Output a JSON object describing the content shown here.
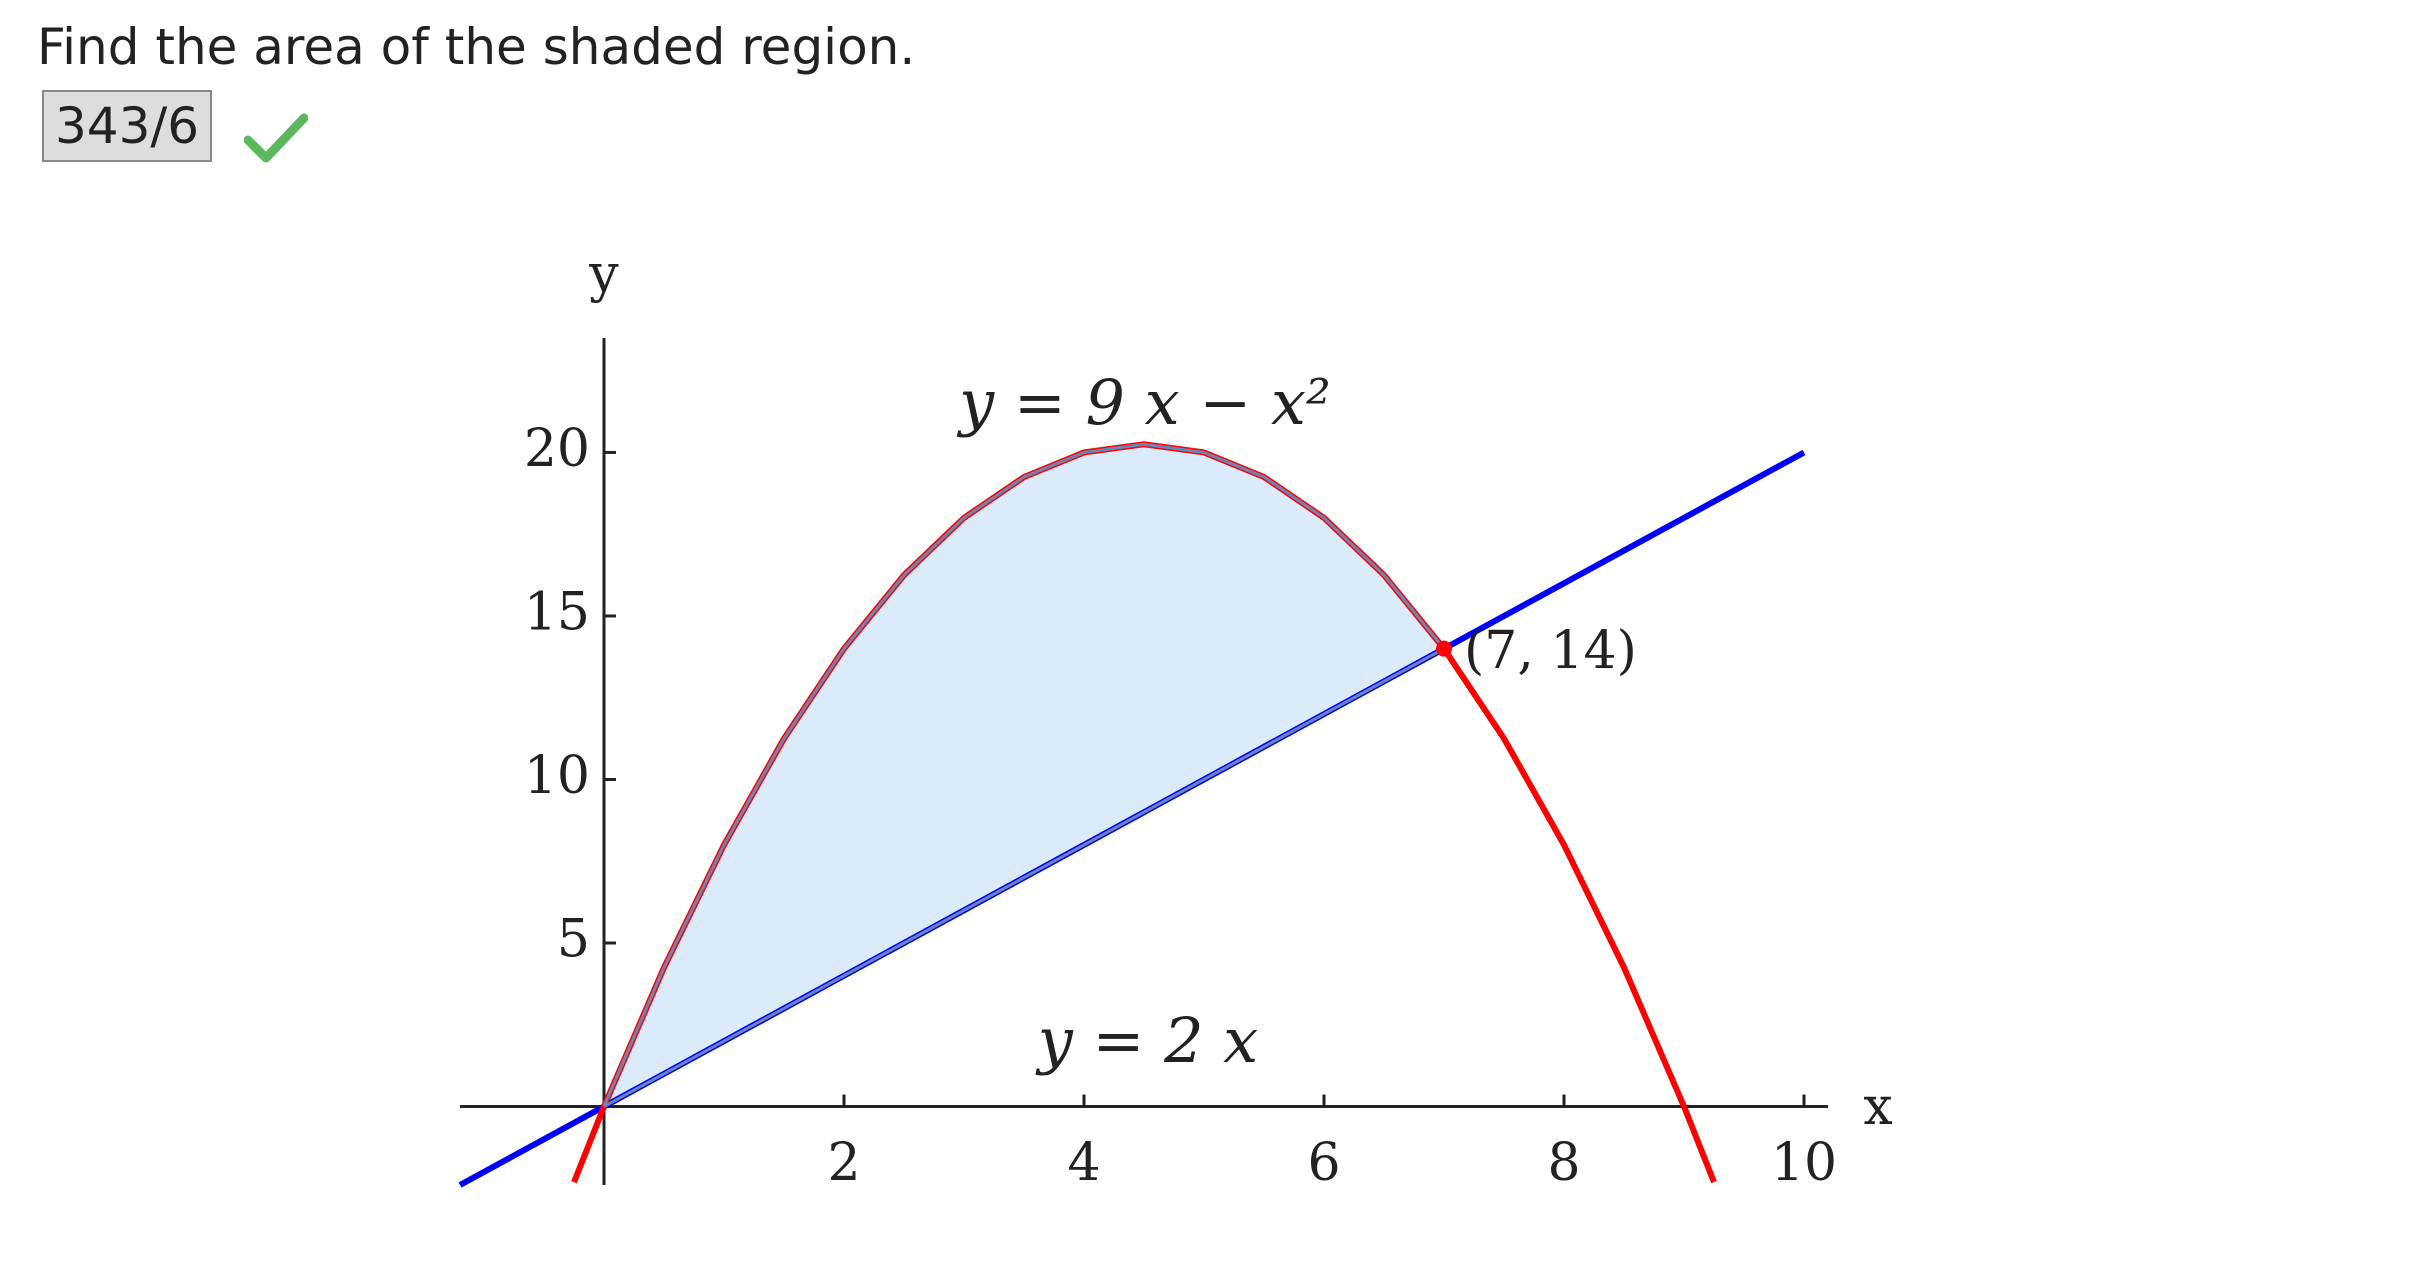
{
  "question": "Find the area of the shaded region.",
  "answer": "343/6",
  "chart_data": {
    "type": "line",
    "xlabel": "x",
    "ylabel": "y",
    "xlim": [
      -1.2,
      10.2
    ],
    "ylim": [
      -2.4,
      23.5
    ],
    "xticks": [
      2,
      4,
      6,
      8,
      10
    ],
    "yticks": [
      5,
      10,
      15,
      20
    ],
    "series": [
      {
        "name": "y = 2 x",
        "color": "#0000ff",
        "x": [
          -1.2,
          10
        ],
        "values": [
          -2.4,
          20
        ]
      },
      {
        "name": "y = 9 x − x²",
        "color": "#ff0000",
        "x": [
          -0.25,
          0,
          0.5,
          1,
          1.5,
          2,
          2.5,
          3,
          3.5,
          4,
          4.5,
          5,
          5.5,
          6,
          6.5,
          7,
          7.5,
          8,
          8.5,
          9,
          9.25
        ],
        "values": [
          -2.3125,
          0,
          4.25,
          8,
          11.25,
          14,
          16.25,
          18,
          19.25,
          20,
          20.25,
          20,
          19.25,
          18,
          16.25,
          14,
          11.25,
          8,
          4.25,
          0,
          -2.3125
        ]
      }
    ],
    "shaded": {
      "color": "#dcebfc",
      "edge": "#6a86b8",
      "x": [
        0,
        0.5,
        1,
        1.5,
        2,
        2.5,
        3,
        3.5,
        4,
        4.5,
        5,
        5.5,
        6,
        6.5,
        7
      ],
      "upper": [
        0,
        4.25,
        8,
        11.25,
        14,
        16.25,
        18,
        19.25,
        20,
        20.25,
        20,
        19.25,
        18,
        16.25,
        14
      ],
      "lower": [
        0,
        1,
        2,
        3,
        4,
        5,
        6,
        7,
        8,
        9,
        10,
        11,
        12,
        13,
        14
      ]
    },
    "point": {
      "x": 7,
      "y": 14,
      "label": "(7, 14)",
      "color": "#ff0000"
    }
  }
}
